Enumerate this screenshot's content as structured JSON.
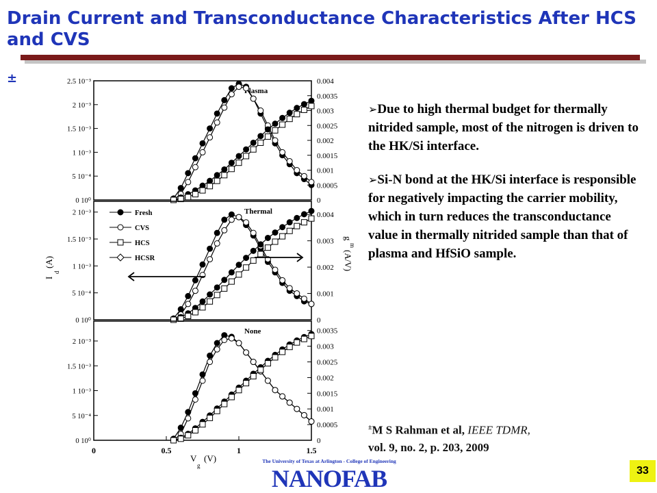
{
  "slide": {
    "title": "Drain Current and Transconductance Characteristics After HCS and CVS",
    "citation_mark": "±",
    "bullets": [
      "Due to high thermal budget for thermally nitrided sample, most of the nitrogen is driven to the HK/Si interface.",
      "Si-N bond at the HK/Si interface is responsible for negatively impacting the carrier mobility, which in turn reduces the transconductance value in thermally nitrided sample than that of plasma and HfSiO sample."
    ],
    "bullet_icon": "arrow-right-bullet-icon",
    "reference": {
      "mark": "±",
      "authors": "M S Rahman et al,",
      "journal": "IEEE TDMR,",
      "line2": "vol. 9, no. 2, p. 203, 2009"
    },
    "page_number": "33",
    "logo": {
      "top_text": "The University of Texas at Arlington - College of Engineering",
      "word": "NANOFAB",
      "icon": "nanofab-logo-icon"
    }
  },
  "chart_data": {
    "type": "line",
    "x_label_main": "V",
    "x_label_sub": "g",
    "x_label_unit": "(V)",
    "x_ticks": [
      "0",
      "0.5",
      "1",
      "1.5"
    ],
    "xlim": [
      0,
      1.5
    ],
    "left_label_main": "I",
    "left_label_sub": "d",
    "left_label_unit": "(A)",
    "right_label_main": "g",
    "right_label_sub": "m",
    "right_label_unit": "(A/V)",
    "legend": [
      {
        "name": "Fresh",
        "marker": "filled-circle"
      },
      {
        "name": "CVS",
        "marker": "open-circle"
      },
      {
        "name": "HCS",
        "marker": "open-square"
      },
      {
        "name": "HCSR",
        "marker": "open-diamond"
      }
    ],
    "x": [
      0.55,
      0.6,
      0.65,
      0.7,
      0.75,
      0.8,
      0.85,
      0.9,
      0.95,
      1.0,
      1.05,
      1.1,
      1.15,
      1.2,
      1.25,
      1.3,
      1.35,
      1.4,
      1.45,
      1.5
    ],
    "panels": [
      {
        "label": "Plasma",
        "left_ticks": [
          "0 10⁰",
          "5 10⁻⁴",
          "1 10⁻³",
          "1.5 10⁻³",
          "2 10⁻³",
          "2.5 10⁻³"
        ],
        "left_values": [
          0,
          0.0005,
          0.001,
          0.0015,
          0.002,
          0.0025
        ],
        "right_ticks": [
          "0",
          "0.0005",
          "0.001",
          "0.0015",
          "0.002",
          "0.0025",
          "0.003",
          "0.0035",
          "0.004"
        ],
        "right_values": [
          0,
          0.0005,
          0.001,
          0.0015,
          0.002,
          0.0025,
          0.003,
          0.0035,
          0.004
        ],
        "ylim_left": [
          0,
          0.0025
        ],
        "ylim_right": [
          0,
          0.004
        ],
        "series": [
          {
            "name": "Fresh",
            "axis": "right",
            "values": [
              5e-05,
              0.0004,
              0.0009,
              0.0014,
              0.0019,
              0.0024,
              0.0029,
              0.00335,
              0.00375,
              0.0039,
              0.0038,
              0.0034,
              0.0029,
              0.0024,
              0.0019,
              0.0015,
              0.0012,
              0.0009,
              0.0007,
              0.0005
            ]
          },
          {
            "name": "CVS",
            "axis": "right",
            "values": [
              0.0,
              0.0002,
              0.0006,
              0.0011,
              0.0016,
              0.0021,
              0.0026,
              0.0031,
              0.00355,
              0.0038,
              0.00375,
              0.0034,
              0.003,
              0.0025,
              0.002,
              0.0016,
              0.0013,
              0.001,
              0.0008,
              0.0006
            ]
          },
          {
            "name": "Fresh",
            "axis": "left",
            "values": [
              0.0,
              5e-05,
              0.00012,
              0.0002,
              0.0003,
              0.0004,
              0.00052,
              0.00064,
              0.00078,
              0.00092,
              0.00106,
              0.0012,
              0.00134,
              0.00148,
              0.0016,
              0.00172,
              0.00183,
              0.00193,
              0.00201,
              0.00208
            ]
          },
          {
            "name": "HCS",
            "axis": "left",
            "values": [
              0.0,
              2e-05,
              6e-05,
              0.00012,
              0.0002,
              0.00029,
              0.0004,
              0.00052,
              0.00065,
              0.00078,
              0.00092,
              0.00106,
              0.0012,
              0.00133,
              0.00146,
              0.00158,
              0.0017,
              0.0018,
              0.00189,
              0.00197
            ]
          }
        ]
      },
      {
        "label": "Thermal",
        "left_ticks": [
          "0 10⁰",
          "5 10⁻⁴",
          "1 10⁻³",
          "1.5 10⁻³",
          "2 10⁻³"
        ],
        "left_values": [
          0,
          0.0005,
          0.001,
          0.0015,
          0.002
        ],
        "right_ticks": [
          "0",
          "0.001",
          "0.002",
          "0.003",
          "0.004"
        ],
        "right_values": [
          0,
          0.001,
          0.002,
          0.003,
          0.004
        ],
        "ylim_left": [
          0,
          0.0022
        ],
        "ylim_right": [
          0,
          0.0045
        ],
        "series": [
          {
            "name": "Fresh",
            "axis": "right",
            "values": [
              5e-05,
              0.0004,
              0.0009,
              0.0015,
              0.0021,
              0.0027,
              0.0033,
              0.0038,
              0.004,
              0.0039,
              0.0036,
              0.0032,
              0.0027,
              0.0022,
              0.0018,
              0.0014,
              0.0011,
              0.0009,
              0.0007,
              0.0006
            ]
          },
          {
            "name": "CVS",
            "axis": "right",
            "values": [
              0.0,
              0.0002,
              0.0006,
              0.0011,
              0.0017,
              0.0023,
              0.0029,
              0.0034,
              0.0038,
              0.0039,
              0.0037,
              0.0033,
              0.0028,
              0.0023,
              0.0019,
              0.0015,
              0.0012,
              0.001,
              0.0008,
              0.0006
            ]
          },
          {
            "name": "Fresh",
            "axis": "left",
            "values": [
              0.0,
              5e-05,
              0.00012,
              0.00022,
              0.00034,
              0.00047,
              0.0006,
              0.00074,
              0.00088,
              0.00102,
              0.00115,
              0.00128,
              0.0014,
              0.00152,
              0.00162,
              0.00172,
              0.00181,
              0.00189,
              0.00196,
              0.00202
            ]
          },
          {
            "name": "HCS",
            "axis": "left",
            "values": [
              0.0,
              2e-05,
              7e-05,
              0.00014,
              0.00023,
              0.00034,
              0.00046,
              0.00058,
              0.00071,
              0.00084,
              0.00097,
              0.0011,
              0.00122,
              0.00134,
              0.00145,
              0.00155,
              0.00165,
              0.00174,
              0.00181,
              0.00188
            ]
          }
        ]
      },
      {
        "label": "None",
        "left_ticks": [
          "0 10⁰",
          "5 10⁻⁴",
          "1 10⁻³",
          "1.5 10⁻³",
          "2 10⁻³"
        ],
        "left_values": [
          0,
          0.0005,
          0.001,
          0.0015,
          0.002
        ],
        "right_ticks": [
          "0",
          "0.0005",
          "0.001",
          "0.0015",
          "0.002",
          "0.0025",
          "0.003",
          "0.0035"
        ],
        "right_values": [
          0,
          0.0005,
          0.001,
          0.0015,
          0.002,
          0.0025,
          0.003,
          0.0035
        ],
        "ylim_left": [
          0,
          0.0024
        ],
        "ylim_right": [
          0,
          0.0038
        ],
        "series": [
          {
            "name": "Fresh",
            "axis": "right",
            "values": [
              5e-05,
              0.0004,
              0.0009,
              0.0015,
              0.0021,
              0.0027,
              0.0031,
              0.00335,
              0.0033,
              0.0031,
              0.0028,
              0.0025,
              0.0022,
              0.0019,
              0.0016,
              0.0014,
              0.0012,
              0.001,
              0.0008,
              0.0006
            ]
          },
          {
            "name": "CVS",
            "axis": "right",
            "values": [
              0.0,
              0.0002,
              0.0007,
              0.0013,
              0.0019,
              0.0025,
              0.0029,
              0.0032,
              0.00325,
              0.0031,
              0.0028,
              0.0025,
              0.0022,
              0.0019,
              0.0016,
              0.0014,
              0.0012,
              0.001,
              0.0008,
              0.0006
            ]
          },
          {
            "name": "Fresh",
            "axis": "left",
            "values": [
              0.0,
              5e-05,
              0.00013,
              0.00024,
              0.00037,
              0.0005,
              0.00064,
              0.00078,
              0.00092,
              0.00106,
              0.0012,
              0.00134,
              0.00147,
              0.0016,
              0.00172,
              0.00183,
              0.00193,
              0.00201,
              0.00208,
              0.00214
            ]
          },
          {
            "name": "HCS",
            "axis": "left",
            "values": [
              0.0,
              3e-05,
              0.0001,
              0.0002,
              0.00032,
              0.00045,
              0.00059,
              0.00073,
              0.00087,
              0.00101,
              0.00115,
              0.00129,
              0.00142,
              0.00155,
              0.00167,
              0.00178,
              0.00188,
              0.00197,
              0.00204,
              0.0021
            ]
          }
        ]
      }
    ]
  }
}
